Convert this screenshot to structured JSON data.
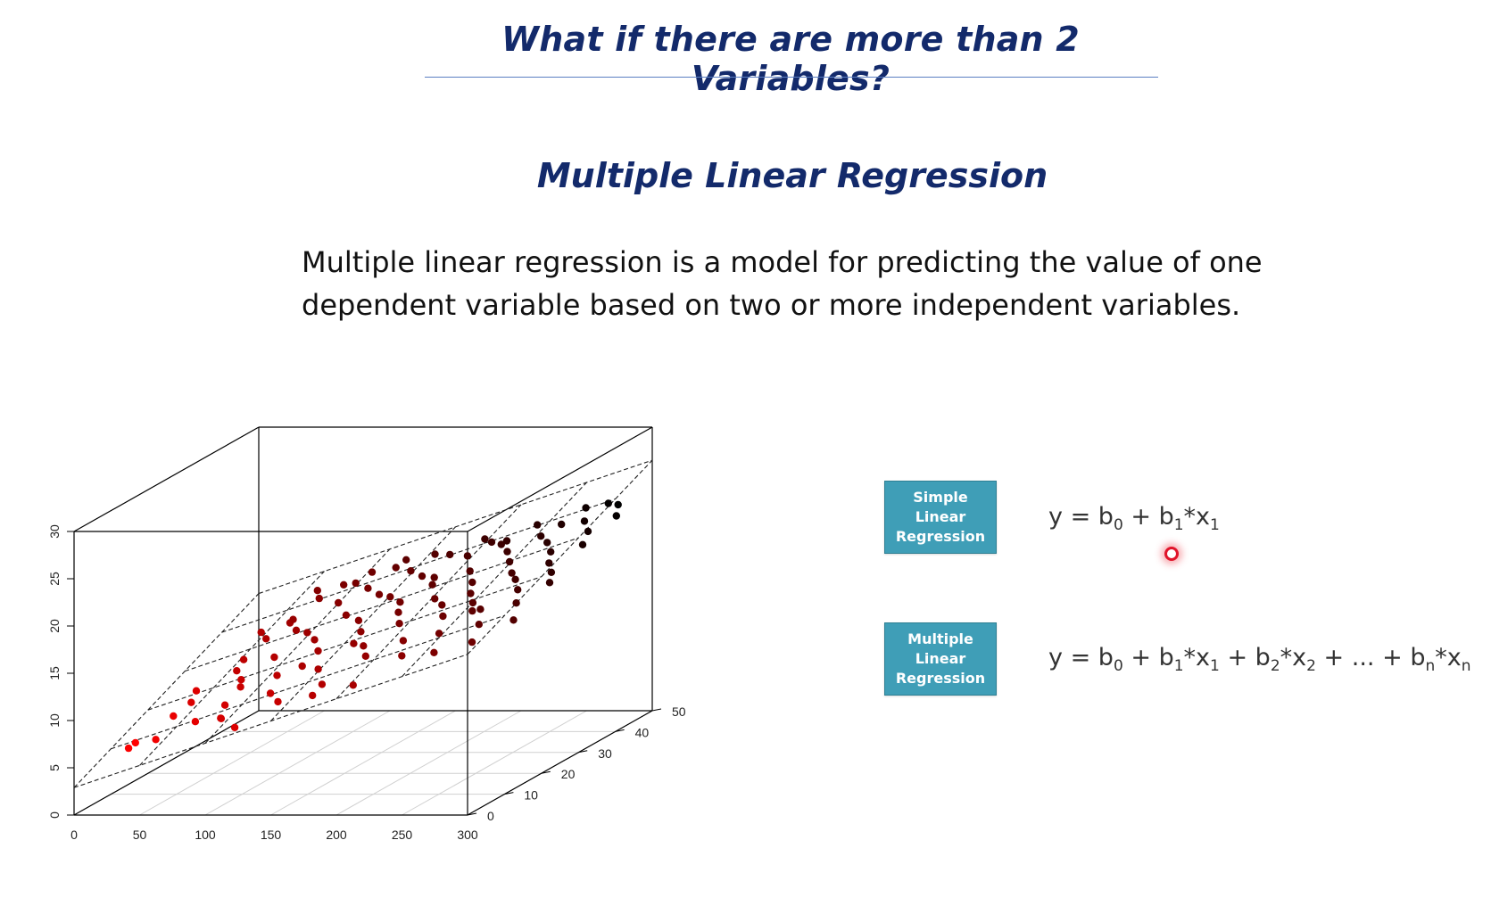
{
  "slide": {
    "title": "What if there are more than 2 Variables?",
    "subtitle": "Multiple Linear Regression",
    "body_lines": [
      "Multiple linear regression is a model for predicting the value of one",
      "dependent variable based on two or more independent variables."
    ]
  },
  "models": [
    {
      "label_lines": [
        "Simple",
        "Linear",
        "Regression"
      ],
      "equation": {
        "y": "y",
        "eq": "=",
        "b0": "b",
        "b0_sub": "0",
        "plus": "+",
        "b1": "b",
        "b1_sub": "1",
        "x1": "*x",
        "x1_sub": "1"
      }
    },
    {
      "label_lines": [
        "Multiple",
        "Linear",
        "Regression"
      ],
      "equation": {
        "y": "y",
        "eq": "=",
        "b0": "b",
        "b0_sub": "0",
        "plus": "+",
        "b1": "b",
        "b1_sub": "1",
        "x1": "*x",
        "x1_sub": "1",
        "b2": "b",
        "b2_sub": "2",
        "x2": "*x",
        "x2_sub": "2",
        "ellipsis": "...",
        "bn": "b",
        "bn_sub": "n",
        "xn": "*x",
        "xn_sub": "n"
      }
    }
  ],
  "chart_data": {
    "type": "scatter",
    "subtype": "3d-scatter-with-regression-plane",
    "title": "",
    "x_axis": {
      "label": "",
      "range": [
        0,
        300
      ],
      "ticks": [
        0,
        50,
        100,
        150,
        200,
        250,
        300
      ]
    },
    "y_axis": {
      "label": "",
      "range": [
        0,
        50
      ],
      "ticks": [
        0,
        10,
        20,
        30,
        40,
        50
      ]
    },
    "z_axis": {
      "label": "",
      "range": [
        0,
        30
      ],
      "ticks": [
        0,
        5,
        10,
        15,
        20,
        25,
        30
      ]
    },
    "plane": {
      "intercept": 2.9,
      "slope_x": 0.047,
      "slope_y": 0.19
    },
    "color_scale": [
      "#ff0000",
      "#000000"
    ],
    "points": [
      [
        13,
        12,
        5.0
      ],
      [
        19,
        8,
        5.3
      ],
      [
        20,
        26,
        7.4
      ],
      [
        25,
        18,
        6.5
      ],
      [
        33,
        20,
        7.5
      ],
      [
        37,
        9,
        6.0
      ],
      [
        42,
        31,
        9.6
      ],
      [
        45,
        36,
        10.7
      ],
      [
        48,
        27,
        9.3
      ],
      [
        52,
        40,
        11.5
      ],
      [
        53,
        14,
        6.8
      ],
      [
        57,
        25,
        8.8
      ],
      [
        63,
        44,
        13.2
      ],
      [
        65,
        22,
        8.7
      ],
      [
        68,
        36,
        11.6
      ],
      [
        71,
        29,
        10.3
      ],
      [
        76,
        46,
        14.2
      ],
      [
        78,
        12,
        7.6
      ],
      [
        82,
        34,
        11.8
      ],
      [
        86,
        41,
        13.4
      ],
      [
        90,
        23,
        9.7
      ],
      [
        92,
        48,
        15.1
      ],
      [
        96,
        31,
        11.7
      ],
      [
        99,
        18,
        8.9
      ],
      [
        103,
        43,
        14.5
      ],
      [
        106,
        36,
        13.2
      ],
      [
        110,
        27,
        11.4
      ],
      [
        113,
        47,
        15.8
      ],
      [
        116,
        14,
        8.9
      ],
      [
        120,
        40,
        14.5
      ],
      [
        124,
        33,
        13.3
      ],
      [
        127,
        21,
        10.8
      ],
      [
        130,
        45,
        15.9
      ],
      [
        134,
        38,
        14.7
      ],
      [
        137,
        29,
        13.0
      ],
      [
        140,
        48,
        17.0
      ],
      [
        144,
        16,
        10.3
      ],
      [
        147,
        42,
        16.0
      ],
      [
        150,
        35,
        14.8
      ],
      [
        153,
        24,
        12.6
      ],
      [
        157,
        46,
        17.4
      ],
      [
        160,
        31,
        14.6
      ],
      [
        162,
        40,
        16.3
      ],
      [
        166,
        20,
        12.4
      ],
      [
        169,
        37,
        16.2
      ],
      [
        172,
        27,
        14.3
      ],
      [
        176,
        44,
        17.7
      ],
      [
        179,
        12,
        11.1
      ],
      [
        182,
        33,
        15.6
      ],
      [
        186,
        47,
        18.5
      ],
      [
        189,
        22,
        13.6
      ],
      [
        192,
        39,
        17.2
      ],
      [
        196,
        30,
        15.6
      ],
      [
        199,
        45,
        18.7
      ],
      [
        202,
        17,
        13.1
      ],
      [
        205,
        35,
        16.9
      ],
      [
        208,
        26,
        15.3
      ],
      [
        212,
        42,
        18.6
      ],
      [
        215,
        31,
        16.6
      ],
      [
        218,
        48,
        20.1
      ],
      [
        222,
        20,
        14.8
      ],
      [
        225,
        38,
        18.4
      ],
      [
        228,
        27,
        16.5
      ],
      [
        232,
        44,
        19.8
      ],
      [
        235,
        14,
        14.1
      ],
      [
        238,
        34,
        18.1
      ],
      [
        242,
        46,
        20.6
      ],
      [
        245,
        23,
        16.7
      ],
      [
        248,
        40,
        20.0
      ],
      [
        252,
        30,
        18.3
      ],
      [
        255,
        48,
        21.9
      ],
      [
        258,
        18,
        16.2
      ],
      [
        262,
        36,
        19.9
      ],
      [
        265,
        26,
        18.1
      ],
      [
        268,
        43,
        21.6
      ],
      [
        272,
        32,
        19.6
      ],
      [
        275,
        47,
        22.6
      ],
      [
        278,
        21,
        17.8
      ],
      [
        282,
        39,
        21.4
      ],
      [
        285,
        28,
        19.5
      ],
      [
        288,
        45,
        22.9
      ],
      [
        292,
        34,
        21.1
      ],
      [
        295,
        24,
        19.3
      ],
      [
        298,
        41,
        22.6
      ],
      [
        60,
        38,
        12.3
      ],
      [
        88,
        45,
        14.6
      ],
      [
        118,
        48,
        16.4
      ],
      [
        148,
        12,
        10.0
      ],
      [
        178,
        48,
        18.6
      ],
      [
        206,
        44,
        19.3
      ],
      [
        236,
        24,
        16.3
      ],
      [
        264,
        14,
        15.2
      ],
      [
        290,
        16,
        17.1
      ],
      [
        140,
        26,
        12.4
      ],
      [
        70,
        16,
        8.1
      ],
      [
        100,
        8,
        7.5
      ],
      [
        56,
        46,
        13.6
      ],
      [
        30,
        40,
        10.5
      ],
      [
        84,
        10,
        8.0
      ],
      [
        112,
        22,
        10.9
      ]
    ]
  }
}
